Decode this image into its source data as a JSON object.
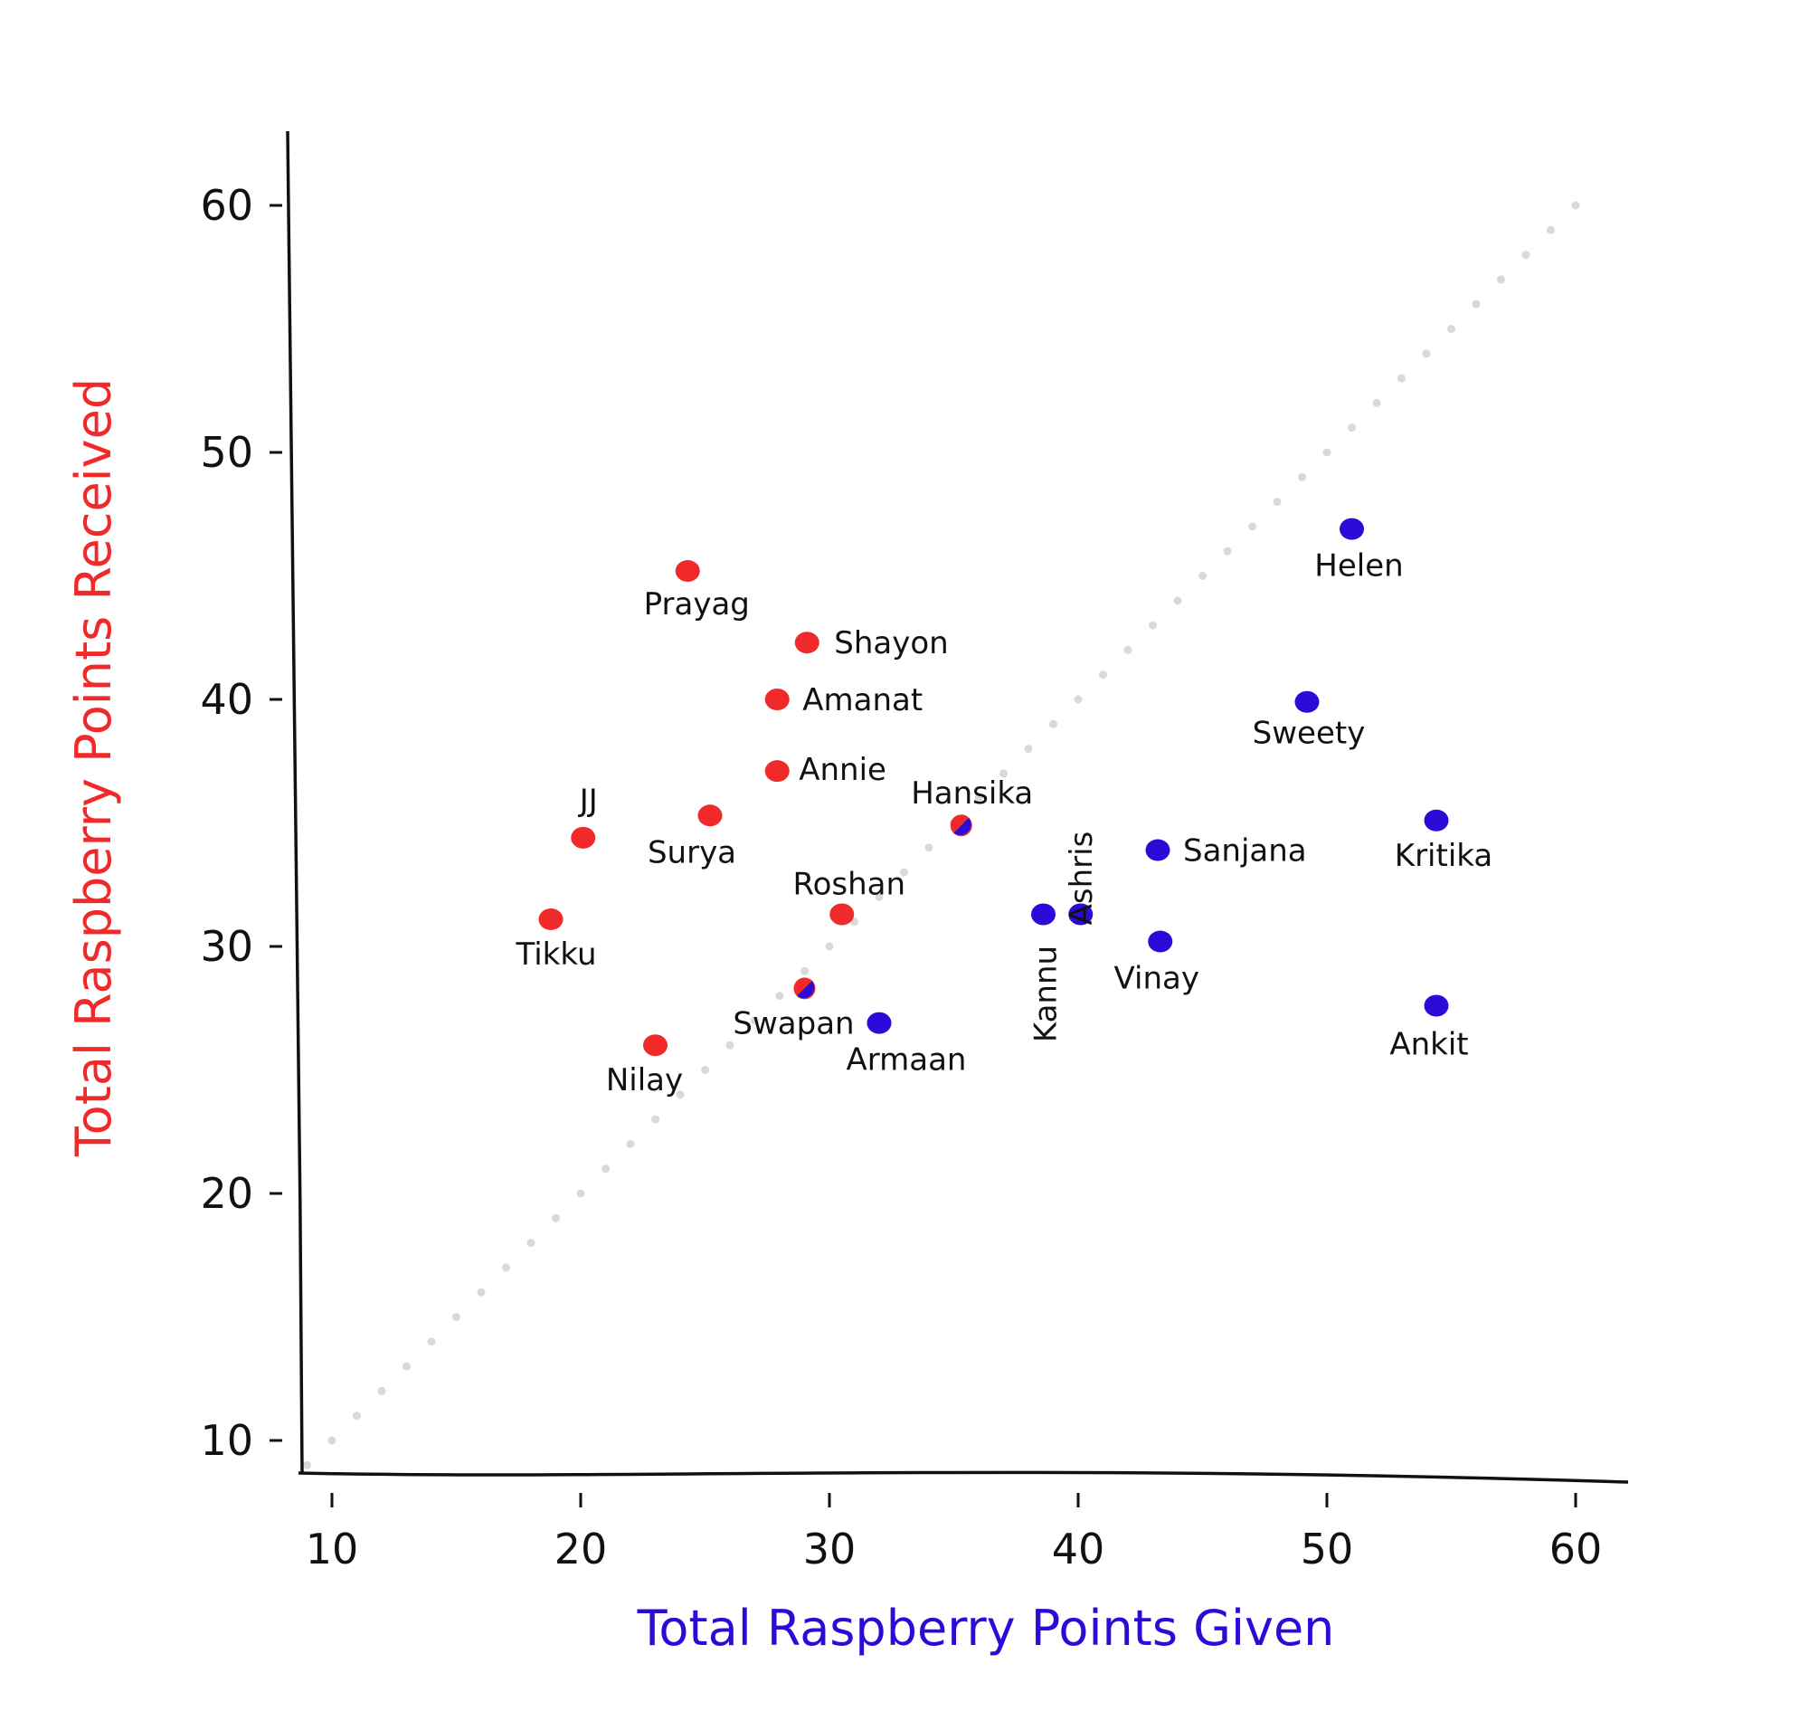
{
  "chart_data": {
    "type": "scatter",
    "xlabel": "Total Raspberry Points Given",
    "ylabel": "Total Raspberry Points Received",
    "xlim": [
      9,
      62
    ],
    "ylim": [
      9,
      63
    ],
    "xticks": [
      10,
      20,
      30,
      40,
      50,
      60
    ],
    "yticks": [
      10,
      20,
      30,
      40,
      50,
      60
    ],
    "grid": false,
    "reference_line": "y = x (dotted)",
    "colors": {
      "received_more": "#f02a2a",
      "given_more": "#2a0bd8",
      "xlabel": "#2a0bd8",
      "ylabel": "#f02a2a",
      "diagonal": "#d9d9d9"
    },
    "points": [
      {
        "name": "Prayag",
        "x": 24.3,
        "y": 45.2,
        "group": "received"
      },
      {
        "name": "Shayon",
        "x": 29.1,
        "y": 42.3,
        "group": "received"
      },
      {
        "name": "Amanat",
        "x": 27.9,
        "y": 40.0,
        "group": "received"
      },
      {
        "name": "Annie",
        "x": 27.9,
        "y": 37.1,
        "group": "received"
      },
      {
        "name": "JJ",
        "x": 20.1,
        "y": 34.4,
        "group": "received"
      },
      {
        "name": "Surya",
        "x": 25.2,
        "y": 35.3,
        "group": "received"
      },
      {
        "name": "Roshan",
        "x": 30.5,
        "y": 31.3,
        "group": "received"
      },
      {
        "name": "Tikku",
        "x": 18.8,
        "y": 31.1,
        "group": "received"
      },
      {
        "name": "Nilay",
        "x": 23.0,
        "y": 26.0,
        "group": "received"
      },
      {
        "name": "Hansika",
        "x": 35.3,
        "y": 34.9,
        "group": "equal"
      },
      {
        "name": "Swapan",
        "x": 29.0,
        "y": 28.3,
        "group": "equal"
      },
      {
        "name": "Armaan",
        "x": 32.0,
        "y": 26.9,
        "group": "given"
      },
      {
        "name": "Kannu",
        "x": 38.6,
        "y": 31.3,
        "group": "given"
      },
      {
        "name": "Ashris",
        "x": 40.1,
        "y": 31.3,
        "group": "given"
      },
      {
        "name": "Sanjana",
        "x": 43.2,
        "y": 33.9,
        "group": "given"
      },
      {
        "name": "Vinay",
        "x": 43.3,
        "y": 30.2,
        "group": "given"
      },
      {
        "name": "Helen",
        "x": 51.0,
        "y": 46.9,
        "group": "given"
      },
      {
        "name": "Sweety",
        "x": 49.2,
        "y": 39.9,
        "group": "given"
      },
      {
        "name": "Kritika",
        "x": 54.4,
        "y": 35.1,
        "group": "given"
      },
      {
        "name": "Ankit",
        "x": 54.4,
        "y": 27.6,
        "group": "given"
      }
    ]
  }
}
